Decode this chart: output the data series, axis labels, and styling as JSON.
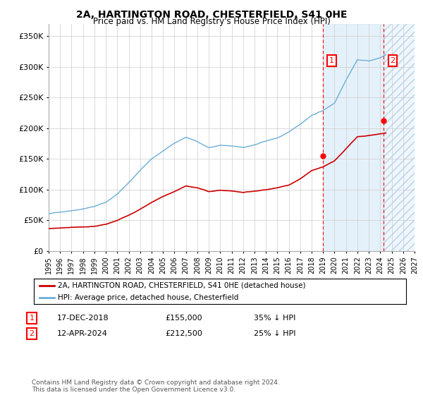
{
  "title": "2A, HARTINGTON ROAD, CHESTERFIELD, S41 0HE",
  "subtitle": "Price paid vs. HM Land Registry's House Price Index (HPI)",
  "legend_entry1": "2A, HARTINGTON ROAD, CHESTERFIELD, S41 0HE (detached house)",
  "legend_entry2": "HPI: Average price, detached house, Chesterfield",
  "transaction1_date": "17-DEC-2018",
  "transaction1_price": 155000,
  "transaction1_label": "35% ↓ HPI",
  "transaction2_date": "12-APR-2024",
  "transaction2_price": 212500,
  "transaction2_label": "25% ↓ HPI",
  "footer": "Contains HM Land Registry data © Crown copyright and database right 2024.\nThis data is licensed under the Open Government Licence v3.0.",
  "hpi_color": "#6baed6",
  "price_color": "#cc0000",
  "ylim": [
    0,
    370000
  ],
  "yticks": [
    0,
    50000,
    100000,
    150000,
    200000,
    250000,
    300000,
    350000
  ],
  "xstart_year": 1995,
  "xend_year": 2027,
  "transaction1_year": 2018.96,
  "transaction2_year": 2024.28
}
